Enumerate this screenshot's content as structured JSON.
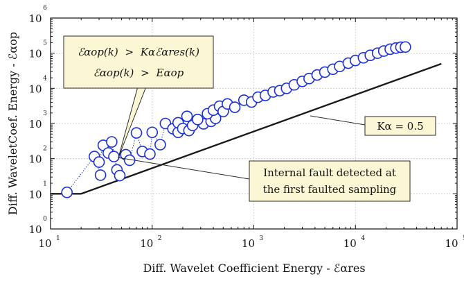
{
  "chart_data": {
    "type": "scatter",
    "x_scale": "log",
    "y_scale": "log",
    "xlim": [
      10,
      100000
    ],
    "ylim": [
      1,
      1000000
    ],
    "grid": true,
    "xlabel": "Diff. Wavelet Coefficient Energy - ℰαres",
    "ylabel": "Diff. WaveletCoef. Energy - ℰαop",
    "x_tick_bases": [
      "10",
      "10",
      "10",
      "10",
      "10"
    ],
    "x_tick_exps": [
      "1",
      "2",
      "3",
      "4",
      "5"
    ],
    "y_tick_bases": [
      "10",
      "10",
      "10",
      "10",
      "10",
      "10",
      "10"
    ],
    "y_tick_exps": [
      "0",
      "1",
      "2",
      "3",
      "4",
      "5",
      "6"
    ],
    "threshold_line": {
      "label": "Kα = 0.5",
      "points": [
        [
          10,
          10
        ],
        [
          20,
          10
        ],
        [
          70000,
          50000
        ]
      ]
    },
    "series": [
      {
        "marker": "open-circle",
        "color": "#1a2fd6",
        "points": [
          [
            14.5,
            11
          ],
          [
            27,
            115
          ],
          [
            31,
            34
          ],
          [
            30,
            80
          ],
          [
            33,
            240
          ],
          [
            37,
            145
          ],
          [
            40,
            300
          ],
          [
            45,
            48
          ],
          [
            48,
            33
          ],
          [
            42,
            115
          ],
          [
            55,
            130
          ],
          [
            60,
            90
          ],
          [
            70,
            540
          ],
          [
            80,
            160
          ],
          [
            95,
            135
          ],
          [
            100,
            560
          ],
          [
            120,
            250
          ],
          [
            135,
            1000
          ],
          [
            160,
            710
          ],
          [
            180,
            560
          ],
          [
            220,
            1600
          ],
          [
            180,
            1050
          ],
          [
            200,
            720
          ],
          [
            230,
            630
          ],
          [
            250,
            880
          ],
          [
            320,
            980
          ],
          [
            380,
            1150
          ],
          [
            420,
            1400
          ],
          [
            280,
            1300
          ],
          [
            350,
            1900
          ],
          [
            400,
            2400
          ],
          [
            460,
            3100
          ],
          [
            500,
            2200
          ],
          [
            550,
            3600
          ],
          [
            650,
            2900
          ],
          [
            800,
            4600
          ],
          [
            950,
            4100
          ],
          [
            1100,
            5600
          ],
          [
            1300,
            6300
          ],
          [
            1550,
            7900
          ],
          [
            1800,
            8600
          ],
          [
            2100,
            10000
          ],
          [
            2500,
            12600
          ],
          [
            3000,
            15800
          ],
          [
            3500,
            19000
          ],
          [
            4200,
            24000
          ],
          [
            5000,
            29000
          ],
          [
            6000,
            35000
          ],
          [
            7000,
            42000
          ],
          [
            8500,
            52000
          ],
          [
            10000,
            62000
          ],
          [
            12000,
            74000
          ],
          [
            14000,
            87000
          ],
          [
            16500,
            100000
          ],
          [
            19000,
            115000
          ],
          [
            22000,
            130000
          ],
          [
            25000,
            140000
          ],
          [
            28000,
            148000
          ],
          [
            31000,
            150000
          ]
        ]
      }
    ],
    "annotations": [
      {
        "kind": "fault",
        "line1": "Internal fault detected at",
        "line2": "the first faulted sampling"
      }
    ],
    "criteria_box": {
      "line1_lhs": "ℰαop(k)",
      "line1_op": ">",
      "line1_rhs": "Kαℰαres(k)",
      "line2_lhs": "ℰαop(k)",
      "line2_op": ">",
      "line2_rhs": "Eαop"
    }
  }
}
